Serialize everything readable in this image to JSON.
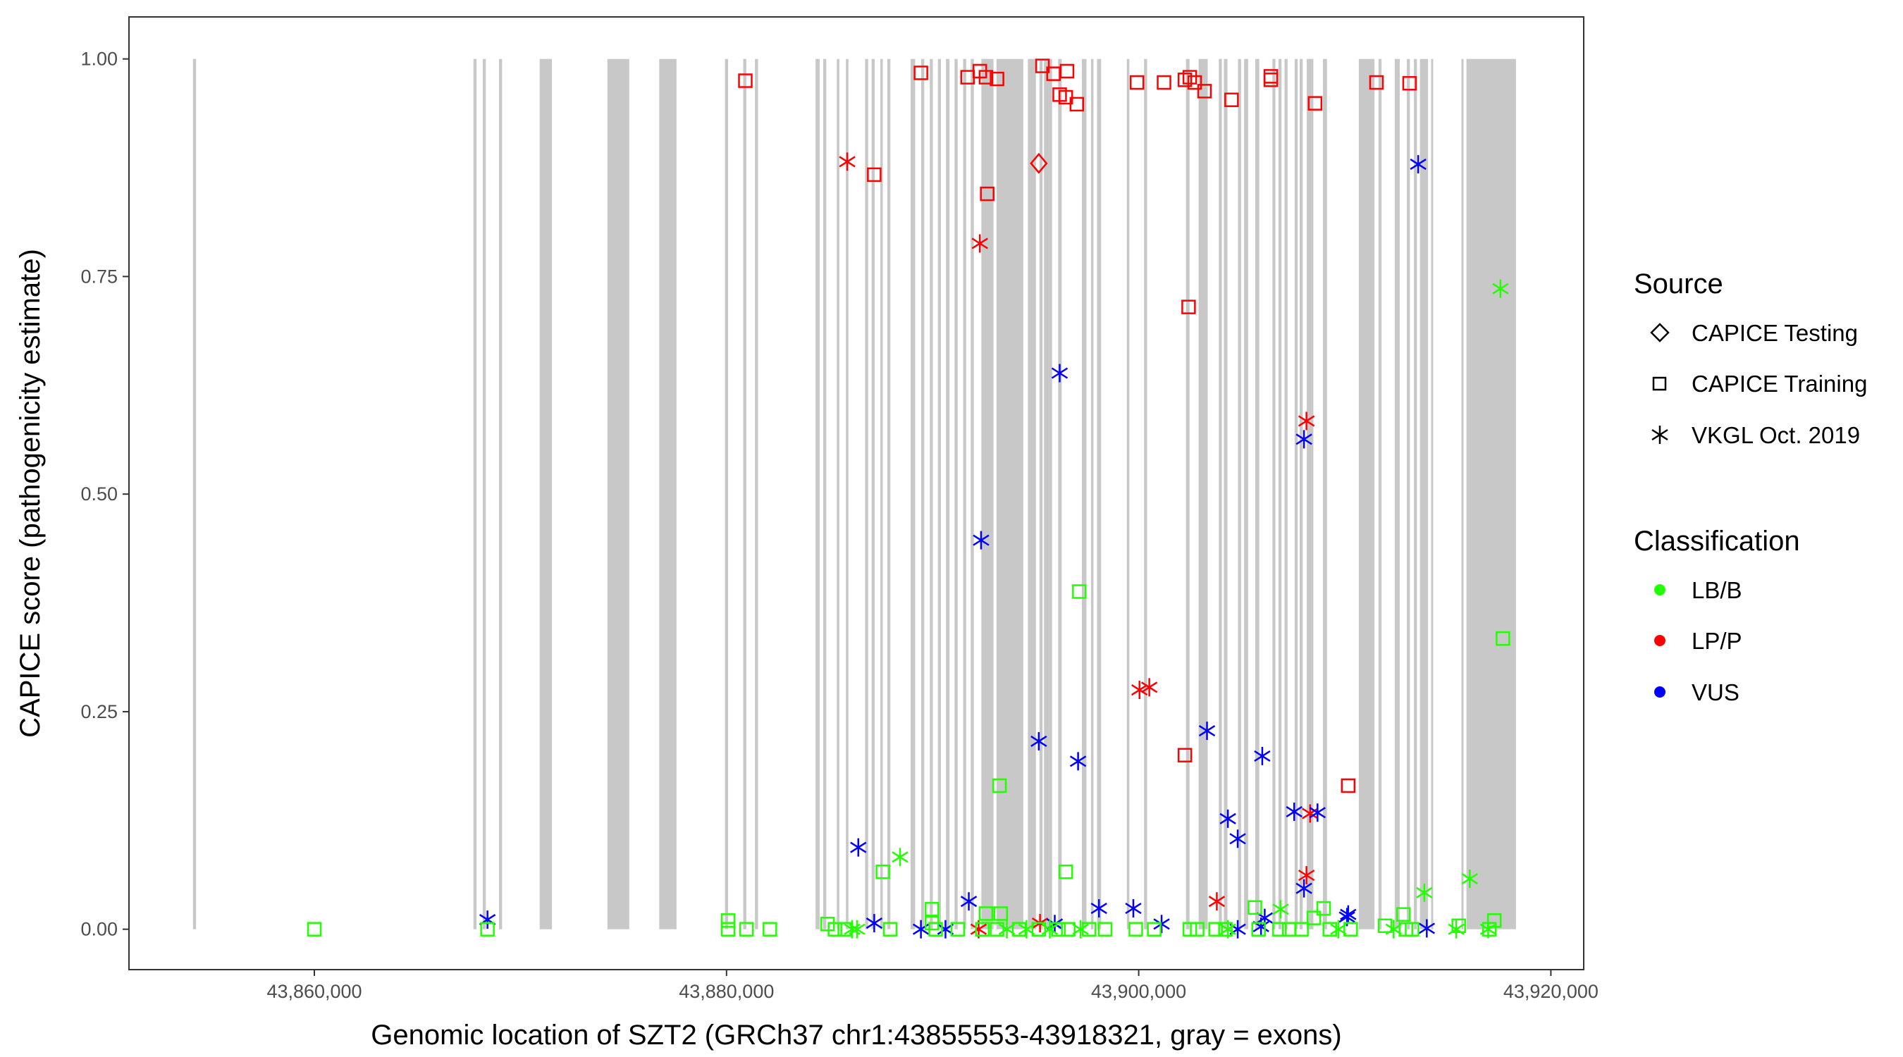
{
  "chart_data": {
    "type": "scatter",
    "title": "",
    "xlabel": "Genomic location of SZT2 (GRCh37 chr1:43855553-43918321, gray = exons)",
    "ylabel": "CAPICE score (pathogenicity estimate)",
    "xlim": [
      43851005,
      43921594
    ],
    "ylim": [
      -0.0464,
      1.0483
    ],
    "grid": false,
    "x_ticks": [
      {
        "value": 43860000,
        "label": "43,860,000"
      },
      {
        "value": 43880000,
        "label": "43,880,000"
      },
      {
        "value": 43900000,
        "label": "43,900,000"
      },
      {
        "value": 43920000,
        "label": "43,920,000"
      }
    ],
    "y_ticks": [
      {
        "value": 0,
        "label": "0.00"
      },
      {
        "value": 0.25,
        "label": "0.25"
      },
      {
        "value": 0.5,
        "label": "0.50"
      },
      {
        "value": 0.75,
        "label": "0.75"
      },
      {
        "value": 1,
        "label": "1.00"
      }
    ],
    "exon_color": "#c8c8c8",
    "exons": [
      [
        43854110,
        43854260
      ],
      [
        43867720,
        43867870
      ],
      [
        43868170,
        43868320
      ],
      [
        43868960,
        43869110
      ],
      [
        43870933,
        43871529
      ],
      [
        43874220,
        43875280
      ],
      [
        43876735,
        43877573
      ],
      [
        43879925,
        43880075
      ],
      [
        43880810,
        43880960
      ],
      [
        43881380,
        43881530
      ],
      [
        43884322,
        43884518
      ],
      [
        43884690,
        43884840
      ],
      [
        43885352,
        43885475
      ],
      [
        43885793,
        43885916
      ],
      [
        43886725,
        43886872
      ],
      [
        43887040,
        43887190
      ],
      [
        43887461,
        43887583
      ],
      [
        43887804,
        43887951
      ],
      [
        43888932,
        43889153
      ],
      [
        43889445,
        43889595
      ],
      [
        43889864,
        43890011
      ],
      [
        43890256,
        43890403
      ],
      [
        43890648,
        43890820
      ],
      [
        43891065,
        43891215
      ],
      [
        43891482,
        43891629
      ],
      [
        43891850,
        43892000
      ],
      [
        43892365,
        43892953
      ],
      [
        43893100,
        43894400
      ],
      [
        43894621,
        43895013
      ],
      [
        43895185,
        43895335
      ],
      [
        43895405,
        43895797
      ],
      [
        43896092,
        43896264
      ],
      [
        43897244,
        43897465
      ],
      [
        43897685,
        43897808
      ],
      [
        43897980,
        43898176
      ],
      [
        43899425,
        43899548
      ],
      [
        43900260,
        43900407
      ],
      [
        43902295,
        43902467
      ],
      [
        43902908,
        43903350
      ],
      [
        43903889,
        43904036
      ],
      [
        43904134,
        43904306
      ],
      [
        43904821,
        43904968
      ],
      [
        43905115,
        43905311
      ],
      [
        43905654,
        43905851
      ],
      [
        43906488,
        43906635
      ],
      [
        43906783,
        43906930
      ],
      [
        43907077,
        43907224
      ],
      [
        43907567,
        43907714
      ],
      [
        43907812,
        43907959
      ],
      [
        43908155,
        43908475
      ],
      [
        43908940,
        43909136
      ],
      [
        43910681,
        43911441
      ],
      [
        43911637,
        43911784
      ],
      [
        43912422,
        43912667
      ],
      [
        43913011,
        43913158
      ],
      [
        43913354,
        43913501
      ],
      [
        43913648,
        43914040
      ],
      [
        43914188,
        43914286
      ],
      [
        43915659,
        43915757
      ],
      [
        43915904,
        43918307
      ]
    ],
    "legend": {
      "placement": "right",
      "source_title": "Source",
      "sources": [
        {
          "name": "CAPICE Testing",
          "shape": "diamond"
        },
        {
          "name": "CAPICE Training",
          "shape": "square"
        },
        {
          "name": "VKGL Oct. 2019",
          "shape": "asterisk"
        }
      ],
      "class_title": "Classification",
      "classes": [
        {
          "name": "LB/B",
          "color": "#22ff00"
        },
        {
          "name": "LP/P",
          "color": "#ff0000"
        },
        {
          "name": "VUS",
          "color": "#0000ff"
        }
      ]
    },
    "series": [
      {
        "source": "CAPICE Training",
        "classification": "LP/P",
        "points": [
          [
            43880913,
            0.975
          ],
          [
            43889433,
            0.984
          ],
          [
            43891697,
            0.979
          ],
          [
            43892292,
            0.986
          ],
          [
            43892590,
            0.979
          ],
          [
            43893126,
            0.977
          ],
          [
            43895331,
            0.992
          ],
          [
            43895867,
            0.983
          ],
          [
            43896523,
            0.986
          ],
          [
            43896165,
            0.959
          ],
          [
            43896463,
            0.956
          ],
          [
            43896999,
            0.948
          ],
          [
            43899919,
            0.973
          ],
          [
            43901229,
            0.973
          ],
          [
            43902242,
            0.976
          ],
          [
            43902481,
            0.979
          ],
          [
            43902719,
            0.973
          ],
          [
            43903195,
            0.963
          ],
          [
            43904506,
            0.953
          ],
          [
            43906413,
            0.98
          ],
          [
            43906413,
            0.976
          ],
          [
            43908558,
            0.949
          ],
          [
            43911537,
            0.973
          ],
          [
            43913145,
            0.972
          ],
          [
            43887168,
            0.867
          ],
          [
            43892650,
            0.845
          ],
          [
            43902421,
            0.715
          ],
          [
            43902242,
            0.2
          ],
          [
            43910166,
            0.165
          ]
        ]
      },
      {
        "source": "VKGL Oct. 2019",
        "classification": "LP/P",
        "points": [
          [
            43885858,
            0.882
          ],
          [
            43892292,
            0.788
          ],
          [
            43900038,
            0.275
          ],
          [
            43900514,
            0.278
          ],
          [
            43908141,
            0.584
          ],
          [
            43908319,
            0.133
          ],
          [
            43908141,
            0.062
          ],
          [
            43903791,
            0.032
          ],
          [
            43892233,
            0.0
          ],
          [
            43895212,
            0.007
          ]
        ]
      },
      {
        "source": "CAPICE Testing",
        "classification": "LP/P",
        "points": [
          [
            43895152,
            0.88
          ]
        ]
      },
      {
        "source": "VKGL Oct. 2019",
        "classification": "VUS",
        "points": [
          [
            43913562,
            0.879
          ],
          [
            43896165,
            0.639
          ],
          [
            43892352,
            0.447
          ],
          [
            43895152,
            0.216
          ],
          [
            43897059,
            0.193
          ],
          [
            43903315,
            0.228
          ],
          [
            43905996,
            0.199
          ],
          [
            43904328,
            0.127
          ],
          [
            43904804,
            0.104
          ],
          [
            43907545,
            0.135
          ],
          [
            43908677,
            0.134
          ],
          [
            43908021,
            0.563
          ],
          [
            43908021,
            0.047
          ],
          [
            43886394,
            0.094
          ],
          [
            43891756,
            0.032
          ],
          [
            43898072,
            0.024
          ],
          [
            43899740,
            0.024
          ],
          [
            43887168,
            0.007
          ],
          [
            43889433,
            0.0
          ],
          [
            43890624,
            0.0
          ],
          [
            43895927,
            0.006
          ],
          [
            43901110,
            0.006
          ],
          [
            43904804,
            0.0
          ],
          [
            43906115,
            0.013
          ],
          [
            43905936,
            0.003
          ],
          [
            43910166,
            0.017
          ],
          [
            43910107,
            0.014
          ],
          [
            43913979,
            0.001
          ],
          [
            43868401,
            0.011
          ]
        ]
      },
      {
        "source": "VKGL Oct. 2019",
        "classification": "LB/B",
        "points": [
          [
            43917554,
            0.736
          ],
          [
            43888420,
            0.083
          ],
          [
            43916065,
            0.058
          ],
          [
            43913860,
            0.042
          ],
          [
            43906889,
            0.023
          ],
          [
            43886096,
            0.0
          ],
          [
            43886334,
            0.0
          ],
          [
            43893603,
            0.0
          ],
          [
            43894556,
            0.0
          ],
          [
            43895688,
            0.0
          ],
          [
            43897178,
            0.0
          ],
          [
            43909690,
            0.0
          ],
          [
            43912371,
            0.0
          ],
          [
            43915409,
            0.0
          ],
          [
            43916958,
            0.0
          ],
          [
            43904328,
            0.0
          ]
        ]
      },
      {
        "source": "CAPICE Training",
        "classification": "LB/B",
        "points": [
          [
            43897118,
            0.388
          ],
          [
            43893246,
            0.165
          ],
          [
            43887586,
            0.066
          ],
          [
            43896463,
            0.066
          ],
          [
            43917673,
            0.334
          ],
          [
            43860000,
            0.0
          ],
          [
            43868401,
            0.0
          ],
          [
            43880078,
            0.01
          ],
          [
            43880078,
            0.0
          ],
          [
            43880972,
            0.0
          ],
          [
            43882104,
            0.0
          ],
          [
            43884904,
            0.006
          ],
          [
            43885262,
            0.0
          ],
          [
            43885739,
            0.0
          ],
          [
            43887943,
            0.0
          ],
          [
            43889969,
            0.023
          ],
          [
            43889969,
            0.007
          ],
          [
            43890147,
            0.0
          ],
          [
            43891220,
            0.0
          ],
          [
            43892590,
            0.018
          ],
          [
            43892412,
            0.0
          ],
          [
            43893126,
            0.0
          ],
          [
            43893305,
            0.018
          ],
          [
            43894199,
            0.0
          ],
          [
            43895152,
            0.0
          ],
          [
            43896105,
            0.0
          ],
          [
            43896582,
            0.0
          ],
          [
            43897595,
            0.0
          ],
          [
            43898370,
            0.0
          ],
          [
            43899859,
            0.0
          ],
          [
            43900753,
            0.0
          ],
          [
            43902481,
            0.0
          ],
          [
            43902838,
            0.0
          ],
          [
            43903732,
            0.0
          ],
          [
            43904208,
            0.0
          ],
          [
            43905638,
            0.025
          ],
          [
            43905817,
            0.0
          ],
          [
            43906830,
            0.0
          ],
          [
            43907307,
            0.0
          ],
          [
            43907902,
            0.0
          ],
          [
            43908498,
            0.013
          ],
          [
            43908975,
            0.024
          ],
          [
            43909273,
            0.0
          ],
          [
            43910286,
            0.0
          ],
          [
            43911954,
            0.004
          ],
          [
            43912847,
            0.017
          ],
          [
            43912967,
            0.0
          ],
          [
            43913265,
            0.0
          ],
          [
            43915529,
            0.004
          ],
          [
            43917256,
            0.01
          ],
          [
            43917018,
            0.0
          ]
        ]
      }
    ]
  }
}
